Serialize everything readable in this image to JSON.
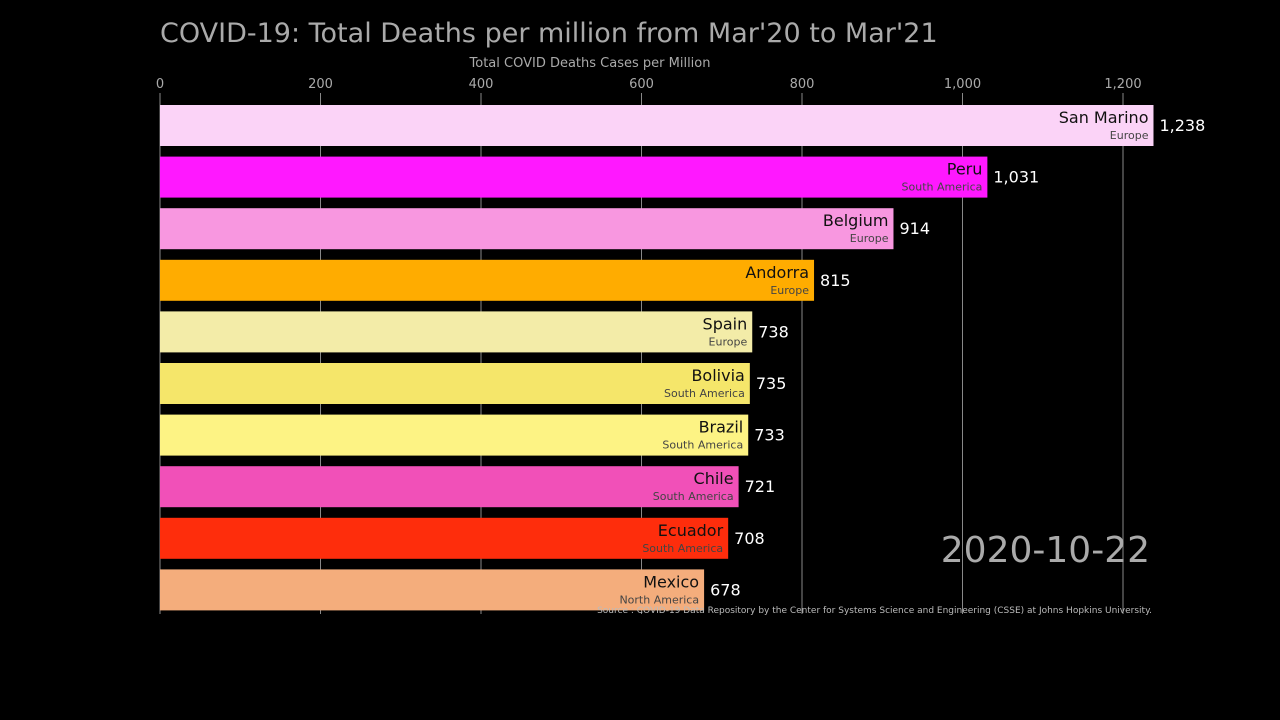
{
  "chart_data": {
    "type": "bar",
    "orientation": "horizontal",
    "title": "COVID-19: Total Deaths per million from Mar'20 to Mar'21",
    "xlabel": "Total COVID Deaths Cases per Million",
    "xlim": [
      0,
      1250
    ],
    "xticks": [
      0,
      200,
      400,
      600,
      800,
      1000,
      1200
    ],
    "xtick_labels": [
      "0",
      "200",
      "400",
      "600",
      "800",
      "1,000",
      "1,200"
    ],
    "grid": true,
    "date": "2020-10-22",
    "source": "Source :  COVID-19 Data Repository by the Center for Systems Science and Engineering (CSSE) at Johns Hopkins University.",
    "bars": [
      {
        "country": "San Marino",
        "continent": "Europe",
        "value": 1238,
        "label": "1,238",
        "color": "#fbd3f7"
      },
      {
        "country": "Peru",
        "continent": "South America",
        "value": 1031,
        "label": "1,031",
        "color": "#ff18ff"
      },
      {
        "country": "Belgium",
        "continent": "Europe",
        "value": 914,
        "label": "914",
        "color": "#f897e0"
      },
      {
        "country": "Andorra",
        "continent": "Europe",
        "value": 815,
        "label": "815",
        "color": "#ffac00"
      },
      {
        "country": "Spain",
        "continent": "Europe",
        "value": 738,
        "label": "738",
        "color": "#f3eca8"
      },
      {
        "country": "Bolivia",
        "continent": "South America",
        "value": 735,
        "label": "735",
        "color": "#f5e66a"
      },
      {
        "country": "Brazil",
        "continent": "South America",
        "value": 733,
        "label": "733",
        "color": "#fdf384"
      },
      {
        "country": "Chile",
        "continent": "South America",
        "value": 721,
        "label": "721",
        "color": "#f150b8"
      },
      {
        "country": "Ecuador",
        "continent": "South America",
        "value": 708,
        "label": "708",
        "color": "#fe2d0c"
      },
      {
        "country": "Mexico",
        "continent": "North America",
        "value": 678,
        "label": "678",
        "color": "#f4ad7c"
      }
    ],
    "colors": {
      "background": "#000000",
      "text": "#aaaaaa",
      "grid": "#888888"
    }
  }
}
